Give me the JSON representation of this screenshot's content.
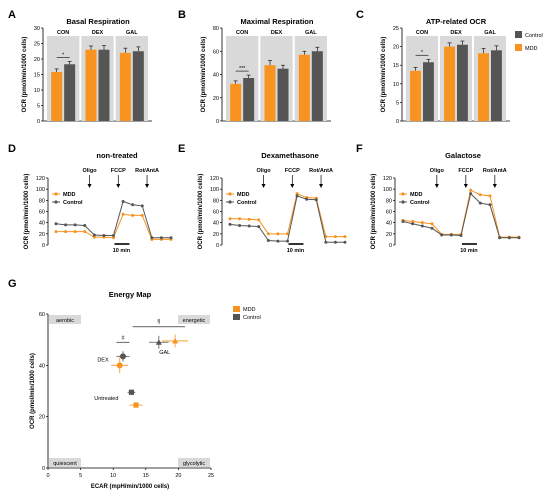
{
  "colors": {
    "mdd": "#F7931E",
    "control": "#555555",
    "band": "#D9D9D9"
  },
  "legend_top": {
    "control": "Control",
    "mdd": "MDD"
  },
  "chart_data": [
    {
      "type": "bar",
      "panel": "A",
      "title": "Basal Respiration",
      "ylabel": "OCR (pmol/min/1000 cells)",
      "ylim": [
        0,
        30
      ],
      "yticks": [
        "0",
        "5",
        "10",
        "15",
        "20",
        "25",
        "30"
      ],
      "categories": [
        "CON",
        "DEX",
        "GAL"
      ],
      "series": [
        {
          "name": "MDD",
          "values": [
            15.8,
            23.0,
            22.0
          ],
          "errors": [
            1.0,
            1.2,
            1.5
          ]
        },
        {
          "name": "Control",
          "values": [
            18.3,
            23.0,
            22.5
          ],
          "errors": [
            0.9,
            1.3,
            1.4
          ]
        }
      ],
      "annotation": "*"
    },
    {
      "type": "bar",
      "panel": "B",
      "title": "Maximal Respiration",
      "ylabel": "OCR (pmol/min/1000 cells)",
      "ylim": [
        0,
        80
      ],
      "yticks": [
        "0",
        "20",
        "40",
        "60",
        "80"
      ],
      "categories": [
        "CON",
        "DEX",
        "GAL"
      ],
      "series": [
        {
          "name": "MDD",
          "values": [
            32,
            48,
            57
          ],
          "errors": [
            2.5,
            4,
            3
          ]
        },
        {
          "name": "Control",
          "values": [
            37,
            45,
            60
          ],
          "errors": [
            2.5,
            3,
            3.5
          ]
        }
      ],
      "annotation": "***"
    },
    {
      "type": "bar",
      "panel": "C",
      "title": "ATP-related OCR",
      "ylabel": "OCR (pmol/min/1000 cells)",
      "ylim": [
        0,
        25
      ],
      "yticks": [
        "0",
        "5",
        "10",
        "15",
        "20",
        "25"
      ],
      "categories": [
        "CON",
        "DEX",
        "GAL"
      ],
      "series": [
        {
          "name": "MDD",
          "values": [
            13.5,
            20.0,
            18.2
          ],
          "errors": [
            0.9,
            1.0,
            1.3
          ]
        },
        {
          "name": "Control",
          "values": [
            15.8,
            20.5,
            19.0
          ],
          "errors": [
            0.8,
            1.0,
            1.2
          ]
        }
      ],
      "annotation": "*"
    },
    {
      "type": "line",
      "panel": "D",
      "title": "non-treated",
      "ylabel": "OCR (pmol/min/1000 cells)",
      "ylim": [
        0,
        120
      ],
      "yticks": [
        "0",
        "20",
        "40",
        "60",
        "80",
        "100",
        "120"
      ],
      "injections": [
        "Oligo",
        "FCCP",
        "Rot/AntA"
      ],
      "scale_bar": "10 min",
      "legend": [
        "MDD",
        "Control"
      ],
      "series": [
        {
          "name": "MDD",
          "values": [
            24,
            24,
            24,
            24,
            14,
            14,
            13,
            55,
            53,
            53,
            10,
            10,
            10
          ]
        },
        {
          "name": "Control",
          "values": [
            38,
            36,
            36,
            35,
            18,
            17,
            17,
            78,
            72,
            70,
            13,
            13,
            13
          ]
        }
      ]
    },
    {
      "type": "line",
      "panel": "E",
      "title": "Dexamethasone",
      "ylabel": "OCR (pmol/min/1000 cells)",
      "ylim": [
        0,
        120
      ],
      "yticks": [
        "0",
        "20",
        "40",
        "60",
        "80",
        "100",
        "120"
      ],
      "injections": [
        "Oligo",
        "FCCP",
        "Rot/AntA"
      ],
      "scale_bar": "10 min",
      "legend": [
        "MDD",
        "Control"
      ],
      "series": [
        {
          "name": "MDD",
          "values": [
            47,
            47,
            46,
            45,
            20,
            20,
            20,
            92,
            85,
            84,
            15,
            15,
            15
          ]
        },
        {
          "name": "Control",
          "values": [
            37,
            35,
            34,
            33,
            8,
            7,
            7,
            88,
            82,
            81,
            5,
            5,
            5
          ]
        }
      ]
    },
    {
      "type": "line",
      "panel": "F",
      "title": "Galactose",
      "ylabel": "OCR (pmol/min/1000 cells)",
      "ylim": [
        0,
        120
      ],
      "yticks": [
        "0",
        "20",
        "40",
        "60",
        "80",
        "100",
        "120"
      ],
      "injections": [
        "Oligo",
        "FCCP",
        "Rot/AntA"
      ],
      "scale_bar": "10 min",
      "legend": [
        "MDD",
        "Control"
      ],
      "series": [
        {
          "name": "MDD",
          "values": [
            44,
            42,
            40,
            38,
            19,
            19,
            19,
            98,
            90,
            88,
            14,
            14,
            14
          ]
        },
        {
          "name": "Control",
          "values": [
            42,
            38,
            34,
            30,
            18,
            18,
            17,
            92,
            75,
            72,
            13,
            13,
            13
          ]
        }
      ]
    },
    {
      "type": "scatter",
      "panel": "G",
      "title": "Energy Map",
      "xlabel": "ECAR (mpH/min/1000 cells)",
      "ylabel": "OCR (pmol/min/1000 cells)",
      "xlim": [
        0,
        25
      ],
      "ylim": [
        0,
        60
      ],
      "xticks": [
        "0",
        "5",
        "10",
        "15",
        "20",
        "25"
      ],
      "yticks": [
        "0",
        "20",
        "40",
        "60"
      ],
      "legend": [
        "MDD",
        "Control"
      ],
      "corners": {
        "top_left": "aerobic",
        "top_right": "energetic",
        "bottom_left": "quiescent",
        "bottom_right": "glycolytic"
      },
      "annotations": [
        "#",
        "§"
      ],
      "groups": [
        {
          "label": "Untreated",
          "mdd": {
            "x": 13.5,
            "y": 24.5,
            "xerr": 1.0,
            "yerr": 1.0
          },
          "control": {
            "x": 12.8,
            "y": 29.5,
            "xerr": 0.6,
            "yerr": 1.0
          }
        },
        {
          "label": "DEX",
          "mdd": {
            "x": 11.0,
            "y": 40.0,
            "xerr": 1.3,
            "yerr": 3.0
          },
          "control": {
            "x": 11.5,
            "y": 43.5,
            "xerr": 1.0,
            "yerr": 2.0
          }
        },
        {
          "label": "GAL",
          "mdd": {
            "x": 19.5,
            "y": 49.5,
            "xerr": 2.0,
            "yerr": 2.5
          },
          "control": {
            "x": 17.0,
            "y": 49.0,
            "xerr": 1.5,
            "yerr": 2.5
          }
        }
      ]
    }
  ]
}
